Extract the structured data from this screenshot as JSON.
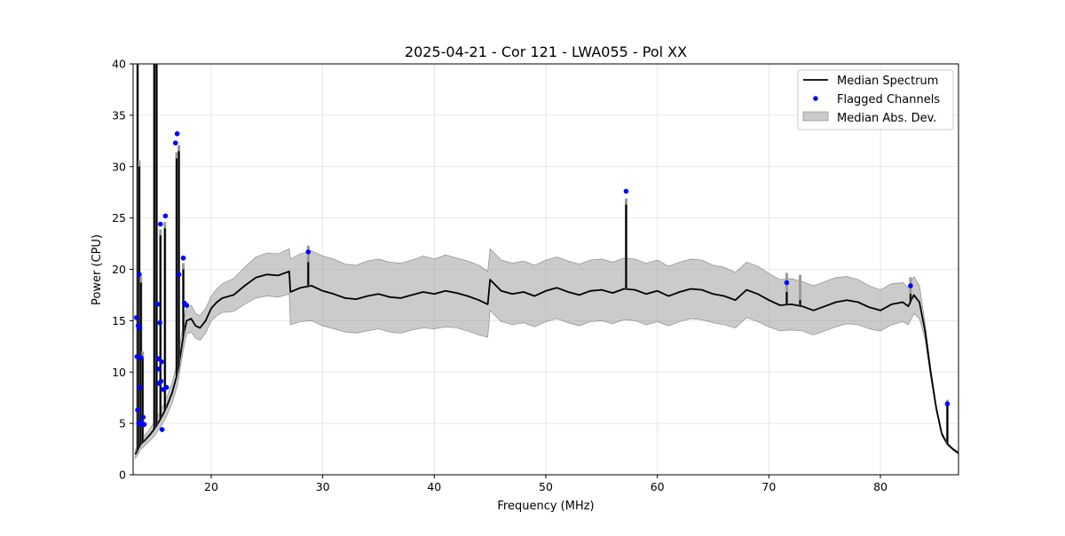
{
  "chart_data": {
    "type": "line",
    "title": "2025-04-21 - Cor 121 - LWA055 - Pol XX",
    "xlabel": "Frequency (MHz)",
    "ylabel": "Power (CPU)",
    "xlim": [
      13.0,
      87.0
    ],
    "ylim": [
      0,
      40
    ],
    "xticks": [
      20,
      30,
      40,
      50,
      60,
      70,
      80
    ],
    "yticks": [
      0,
      5,
      10,
      15,
      20,
      25,
      30,
      35,
      40
    ],
    "grid": true,
    "legend_position": "top-right",
    "legend": [
      {
        "label": "Median Spectrum",
        "kind": "line",
        "color": "#000000"
      },
      {
        "label": "Flagged Channels",
        "kind": "marker",
        "color": "#0000ff"
      },
      {
        "label": "Median Abs. Dev.",
        "kind": "band",
        "color": "#a0a0a0"
      }
    ],
    "series": [
      {
        "name": "Median Spectrum",
        "x": [
          13.2,
          13.4,
          13.5,
          13.6,
          13.7,
          13.8,
          14.0,
          14.5,
          15.0,
          15.5,
          16.0,
          16.5,
          17.0,
          17.5,
          17.8,
          18.2,
          18.6,
          19.0,
          19.5,
          20.0,
          20.5,
          21.0,
          22.0,
          23.0,
          24.0,
          25.0,
          26.0,
          27.0,
          27.1,
          28.0,
          29.0,
          30.0,
          31.0,
          32.0,
          33.0,
          34.0,
          35.0,
          36.0,
          37.0,
          38.0,
          39.0,
          40.0,
          41.0,
          42.0,
          43.0,
          44.0,
          44.8,
          45.0,
          46.0,
          47.0,
          48.0,
          49.0,
          50.0,
          51.0,
          52.0,
          53.0,
          54.0,
          55.0,
          56.0,
          57.0,
          58.0,
          59.0,
          60.0,
          61.0,
          62.0,
          63.0,
          64.0,
          65.0,
          66.0,
          67.0,
          68.0,
          69.0,
          70.0,
          71.0,
          72.0,
          73.0,
          74.0,
          75.0,
          76.0,
          77.0,
          78.0,
          79.0,
          80.0,
          81.0,
          82.0,
          82.5,
          83.0,
          83.5,
          84.0,
          84.5,
          85.0,
          85.5,
          86.0,
          86.5,
          87.0
        ],
        "y": [
          2.0,
          2.4,
          2.6,
          2.8,
          3.0,
          3.1,
          3.3,
          3.9,
          4.6,
          5.5,
          6.6,
          8.0,
          10.0,
          13.5,
          15.0,
          15.2,
          14.5,
          14.3,
          15.0,
          16.2,
          16.8,
          17.2,
          17.5,
          18.4,
          19.2,
          19.5,
          19.4,
          19.8,
          17.8,
          18.2,
          18.4,
          17.9,
          17.6,
          17.2,
          17.1,
          17.4,
          17.6,
          17.3,
          17.2,
          17.5,
          17.8,
          17.6,
          17.9,
          17.7,
          17.4,
          17.0,
          16.6,
          19.0,
          17.9,
          17.6,
          17.8,
          17.4,
          17.9,
          18.2,
          17.8,
          17.5,
          17.9,
          18.0,
          17.7,
          18.1,
          18.0,
          17.6,
          17.9,
          17.4,
          17.8,
          18.1,
          18.0,
          17.6,
          17.4,
          17.0,
          18.0,
          17.6,
          17.0,
          16.5,
          16.6,
          16.4,
          16.0,
          16.4,
          16.8,
          17.0,
          16.8,
          16.3,
          16.0,
          16.6,
          16.8,
          16.4,
          17.5,
          16.8,
          14.0,
          10.0,
          6.5,
          4.0,
          3.0,
          2.5,
          2.1
        ],
        "mad_lower": [
          1.6,
          1.9,
          2.1,
          2.3,
          2.5,
          2.6,
          2.8,
          3.3,
          3.9,
          4.7,
          5.7,
          7.0,
          8.8,
          12.2,
          13.7,
          13.9,
          13.3,
          13.1,
          13.8,
          15.0,
          15.5,
          15.8,
          15.9,
          16.6,
          17.2,
          17.4,
          17.3,
          17.6,
          14.6,
          14.9,
          15.0,
          14.5,
          14.2,
          13.9,
          13.8,
          14.0,
          14.2,
          13.9,
          13.8,
          14.1,
          14.3,
          14.2,
          14.4,
          14.3,
          14.0,
          13.6,
          13.4,
          16.0,
          14.9,
          14.6,
          14.8,
          14.4,
          14.9,
          15.2,
          14.8,
          14.5,
          14.9,
          15.0,
          14.7,
          15.1,
          15.0,
          14.6,
          14.9,
          14.5,
          14.9,
          15.2,
          15.1,
          14.8,
          14.6,
          14.3,
          15.3,
          14.9,
          14.4,
          14.0,
          14.1,
          14.0,
          13.6,
          14.0,
          14.4,
          14.7,
          14.6,
          14.2,
          14.0,
          14.6,
          14.9,
          14.6,
          15.7,
          15.2,
          13.2,
          9.5,
          6.2,
          3.8,
          2.9,
          2.4,
          2.0
        ],
        "mad_upper": [
          2.4,
          2.9,
          3.1,
          3.3,
          3.5,
          3.6,
          3.8,
          4.5,
          5.3,
          6.3,
          7.5,
          9.0,
          11.2,
          14.8,
          16.3,
          16.5,
          15.7,
          15.5,
          16.2,
          17.4,
          18.1,
          18.6,
          19.1,
          20.2,
          21.2,
          21.6,
          21.5,
          22.0,
          21.0,
          21.5,
          21.8,
          21.3,
          21.0,
          20.5,
          20.4,
          20.8,
          21.0,
          20.7,
          20.6,
          20.9,
          21.3,
          21.0,
          21.4,
          21.1,
          20.8,
          20.4,
          19.8,
          22.0,
          20.9,
          20.6,
          20.8,
          20.4,
          20.9,
          21.2,
          20.8,
          20.5,
          20.9,
          21.0,
          20.7,
          21.1,
          21.0,
          20.6,
          20.9,
          20.3,
          20.7,
          21.0,
          20.9,
          20.4,
          20.2,
          19.7,
          20.7,
          20.3,
          19.6,
          19.0,
          19.1,
          18.8,
          18.4,
          18.8,
          19.2,
          19.3,
          19.0,
          18.4,
          18.0,
          18.6,
          18.7,
          18.2,
          19.3,
          18.4,
          14.8,
          10.5,
          6.8,
          4.2,
          3.1,
          2.6,
          2.2
        ]
      },
      {
        "name": "Median Spectrum (RFI spikes)",
        "spikes": [
          {
            "x": 13.4,
            "y": 40.0
          },
          {
            "x": 13.55,
            "y": 30.0
          },
          {
            "x": 13.7,
            "y": 18.7
          },
          {
            "x": 13.85,
            "y": 11.4
          },
          {
            "x": 14.9,
            "y": 40.0
          },
          {
            "x": 15.1,
            "y": 40.0
          },
          {
            "x": 15.45,
            "y": 23.3
          },
          {
            "x": 15.85,
            "y": 24.0
          },
          {
            "x": 16.9,
            "y": 30.8
          },
          {
            "x": 17.1,
            "y": 31.5
          },
          {
            "x": 17.5,
            "y": 20.0
          },
          {
            "x": 28.7,
            "y": 20.7
          },
          {
            "x": 57.2,
            "y": 26.3
          },
          {
            "x": 71.6,
            "y": 17.8
          },
          {
            "x": 72.8,
            "y": 17.0
          },
          {
            "x": 82.7,
            "y": 17.6
          },
          {
            "x": 86.0,
            "y": 6.7
          }
        ]
      },
      {
        "name": "Flagged Channels",
        "x": [
          13.3,
          13.35,
          13.4,
          13.45,
          13.5,
          13.55,
          13.6,
          13.65,
          13.7,
          13.75,
          13.8,
          13.9,
          14.0,
          15.2,
          15.25,
          15.3,
          15.35,
          15.4,
          15.45,
          15.5,
          15.55,
          15.6,
          15.7,
          15.9,
          16.0,
          16.8,
          16.95,
          17.1,
          17.5,
          17.6,
          17.8,
          28.7,
          57.2,
          71.6,
          82.7,
          86.0
        ],
        "y": [
          15.3,
          11.5,
          6.3,
          14.5,
          5.0,
          19.5,
          14.3,
          8.5,
          11.4,
          5.1,
          4.9,
          5.6,
          4.9,
          16.6,
          11.3,
          10.3,
          8.9,
          14.8,
          24.4,
          9.1,
          11.0,
          4.4,
          8.3,
          25.2,
          8.5,
          32.3,
          33.2,
          19.5,
          21.1,
          16.7,
          16.5,
          21.7,
          27.6,
          18.7,
          18.4,
          6.9
        ]
      }
    ]
  }
}
